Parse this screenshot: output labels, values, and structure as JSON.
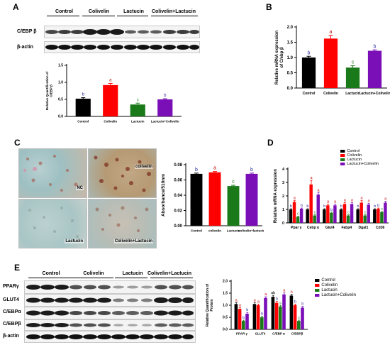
{
  "panels": {
    "A": {
      "letter": "A",
      "blot_groups": [
        "Control",
        "Colivelin",
        "Lactucin",
        "Colivelin+Lactucin"
      ],
      "blot_rows": [
        "C/EBP β",
        "β-actin"
      ]
    },
    "B": {
      "letter": "B"
    },
    "C": {
      "letter": "C",
      "micro_labels": [
        "NC",
        "colivelin",
        "Lactucin",
        "Colivelin+Lactucin"
      ]
    },
    "D": {
      "letter": "D"
    },
    "E": {
      "letter": "E",
      "blot_groups": [
        "Control",
        "Colivelin",
        "Lactucin",
        "Colivelin+Lactucin"
      ],
      "blot_rows": [
        "PPARγ",
        "GLUT4",
        "C/EBPα",
        "C/EBPβ",
        "β-actin"
      ]
    }
  },
  "colors": {
    "control": "#000000",
    "colivelin": "#ff0000",
    "lactucin": "#1a7a1a",
    "combo": "#7a0fb8",
    "letter_a": "#c00000",
    "letter_b": "#2a2a9a",
    "letter_c": "#1a7a1a",
    "letter_ab": "#000000",
    "panel_D_colivelin": "#cc3300"
  },
  "chart_data": [
    {
      "id": "A_quant",
      "type": "bar",
      "ylabel": "Relative Quantification of C/EBP β",
      "categories": [
        "Control",
        "Colivelin",
        "Lactucin",
        "Lactucin+Colivelin"
      ],
      "values": [
        0.52,
        0.92,
        0.35,
        0.5
      ],
      "errors": [
        0.03,
        0.05,
        0.04,
        0.02
      ],
      "sig": [
        "b",
        "a",
        "c",
        "b"
      ],
      "ylim": [
        0,
        1.5
      ],
      "yticks": [
        "0.0",
        "0.5",
        "1.0",
        "1.5"
      ]
    },
    {
      "id": "B",
      "type": "bar",
      "ylabel": "Relative mRNA expression of C/ebp β",
      "categories": [
        "Control",
        "Colivelin",
        "Lactucin",
        "Lactucin+Colivelin"
      ],
      "values": [
        1.0,
        1.62,
        0.67,
        1.22
      ],
      "errors": [
        0.04,
        0.1,
        0.06,
        0.03
      ],
      "sig": [
        "b",
        "a",
        "c",
        "b"
      ],
      "ylim": [
        0,
        2.0
      ],
      "yticks": [
        "0.0",
        "0.5",
        "1.0",
        "1.5",
        "2.0"
      ]
    },
    {
      "id": "C_abs",
      "type": "bar",
      "ylabel": "Absorbance/510nm",
      "categories": [
        "Control",
        "colivelin",
        "Lactucin",
        "colivelin+lactucin"
      ],
      "values": [
        0.068,
        0.07,
        0.052,
        0.068
      ],
      "errors": [
        0.001,
        0.001,
        0.001,
        0.001
      ],
      "sig": [
        "b",
        "a",
        "c",
        "b"
      ],
      "ylim": [
        0,
        0.08
      ],
      "yticks": [
        "0.00",
        "0.02",
        "0.04",
        "0.06",
        "0.08"
      ]
    },
    {
      "id": "D",
      "type": "bar",
      "ylabel": "Relative mRNA expression",
      "categories": [
        "Ppar γ",
        "Cebp α",
        "Glut4",
        "Fabp4",
        "Dgat1",
        "Cd36"
      ],
      "series": [
        {
          "name": "Control",
          "values": [
            1.0,
            1.0,
            1.0,
            1.0,
            1.0,
            1.0
          ],
          "errors": [
            0.05,
            0.05,
            0.05,
            0.05,
            0.05,
            0.05
          ],
          "sig": [
            "b",
            "b",
            "b",
            "b",
            "b",
            "b"
          ]
        },
        {
          "name": "Colivelin",
          "values": [
            1.55,
            2.85,
            1.3,
            1.4,
            1.5,
            1.05
          ],
          "errors": [
            0.1,
            0.3,
            0.1,
            0.1,
            0.15,
            0.05
          ],
          "sig": [
            "a",
            "a",
            "a",
            "a",
            "a",
            "b"
          ]
        },
        {
          "name": "Lactucin",
          "values": [
            0.45,
            0.55,
            0.75,
            0.55,
            0.55,
            0.8
          ],
          "errors": [
            0.05,
            0.05,
            0.05,
            0.05,
            0.05,
            0.05
          ],
          "sig": [
            "c",
            "c",
            "b",
            "c",
            "c",
            "c"
          ]
        },
        {
          "name": "Lactucin+Colivelin",
          "values": [
            1.05,
            2.1,
            1.3,
            1.4,
            1.35,
            1.5
          ],
          "errors": [
            0.05,
            0.15,
            0.1,
            0.1,
            0.1,
            0.1
          ],
          "sig": [
            "b",
            "a",
            "a",
            "a",
            "a",
            "a"
          ]
        }
      ],
      "ylim": [
        0,
        4
      ],
      "yticks": [
        "0",
        "1",
        "2",
        "3",
        "4"
      ],
      "legend": "top-right"
    },
    {
      "id": "E_quant",
      "type": "bar",
      "ylabel": "Relative Quantification of Protein",
      "categories": [
        "PPAR γ",
        "GLUT4",
        "C/EBP α",
        "C/EBPβ"
      ],
      "series": [
        {
          "name": "Control",
          "values": [
            1.05,
            1.05,
            1.35,
            1.4
          ],
          "errors": [
            0.06,
            0.05,
            0.06,
            0.05
          ],
          "sig": [
            "a",
            "a",
            "ab",
            "a"
          ]
        },
        {
          "name": "Colivelin",
          "values": [
            0.85,
            1.0,
            1.1,
            1.0
          ],
          "errors": [
            0.05,
            0.05,
            0.06,
            0.05
          ],
          "sig": [
            "a",
            "a",
            "b",
            "b"
          ]
        },
        {
          "name": "Lactucin",
          "values": [
            0.35,
            0.5,
            0.95,
            0.35
          ],
          "errors": [
            0.03,
            0.04,
            0.05,
            0.03
          ],
          "sig": [
            "b",
            "b",
            "c",
            "c"
          ]
        },
        {
          "name": "Lactucin+Colivelin",
          "values": [
            0.65,
            1.3,
            1.45,
            0.9
          ],
          "errors": [
            0.05,
            0.05,
            0.06,
            0.05
          ],
          "sig": [
            "b",
            "a",
            "a",
            "b"
          ]
        }
      ],
      "ylim": [
        0,
        2.0
      ],
      "yticks": [
        "0.0",
        "0.5",
        "1.0",
        "1.5",
        "2.0"
      ],
      "legend": "top-right"
    }
  ]
}
